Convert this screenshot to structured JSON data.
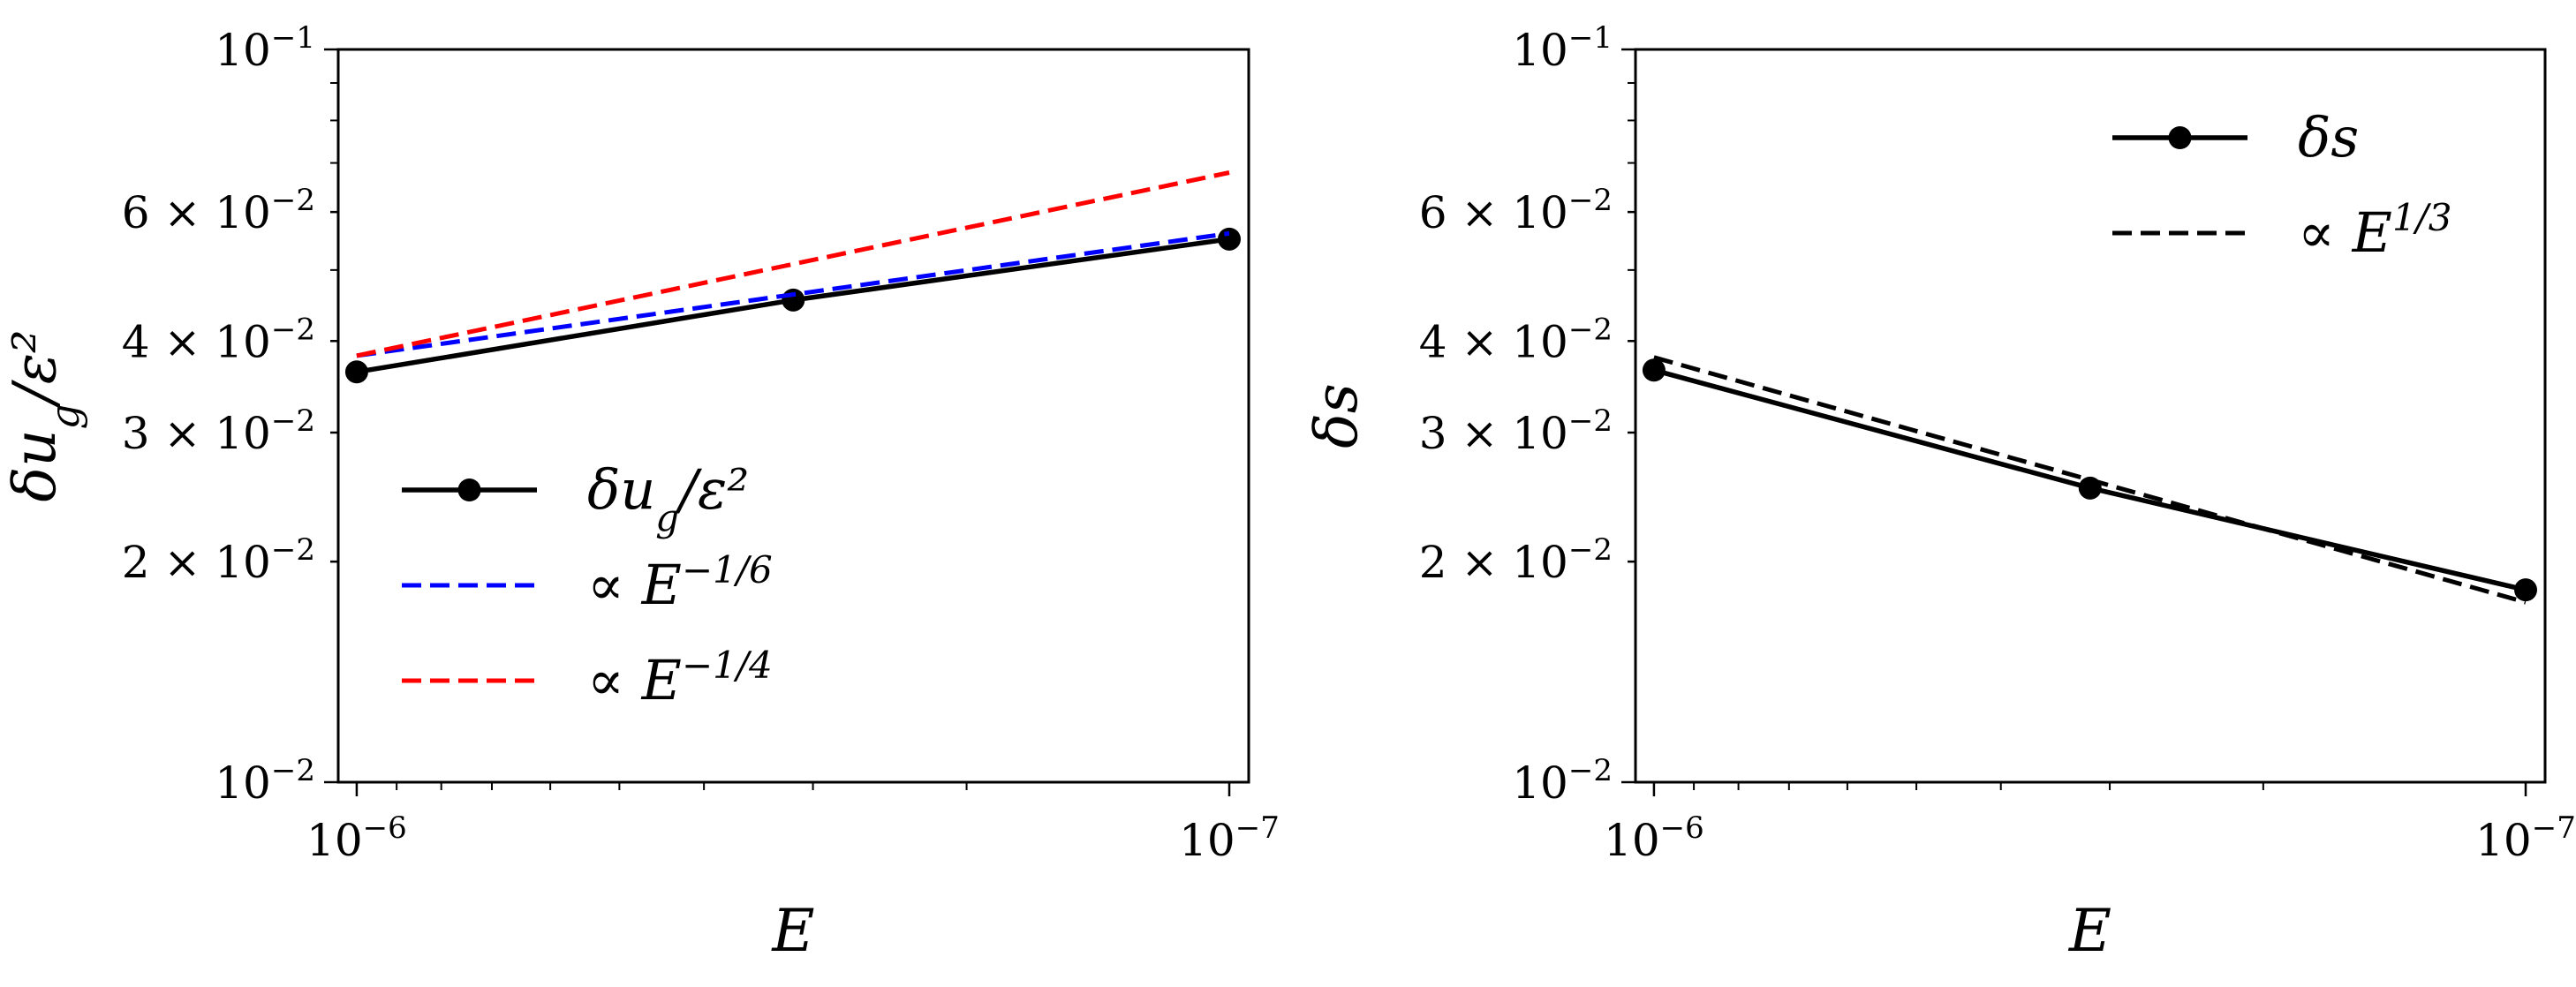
{
  "chart_data": [
    {
      "type": "line",
      "xlabel": "E",
      "ylabel": "δu_g/ε²",
      "x_scale": "log",
      "x_reversed": true,
      "xlim": [
        1.05e-06,
        9.5e-08
      ],
      "x_ticks": [
        {
          "value": 1e-06,
          "label": "10",
          "exp": "−6"
        },
        {
          "value": 1e-07,
          "label": "10",
          "exp": "−7"
        }
      ],
      "y_scale": "log",
      "ylim": [
        0.01,
        0.1
      ],
      "y_ticks": [
        {
          "value": 0.1,
          "mant": "",
          "label": "10",
          "exp": "−1"
        },
        {
          "value": 0.06,
          "mant": "6 × ",
          "label": "10",
          "exp": "−2"
        },
        {
          "value": 0.04,
          "mant": "4 × ",
          "label": "10",
          "exp": "−2"
        },
        {
          "value": 0.03,
          "mant": "3 × ",
          "label": "10",
          "exp": "−2"
        },
        {
          "value": 0.02,
          "mant": "2 × ",
          "label": "10",
          "exp": "−2"
        },
        {
          "value": 0.01,
          "mant": "",
          "label": "10",
          "exp": "−2"
        }
      ],
      "legend_position": "lower-left",
      "series": [
        {
          "name": "δu_g/ε²",
          "color": "#000000",
          "style": "solid",
          "markers": true,
          "x": [
            1e-06,
            3.16e-07,
            1e-07
          ],
          "y": [
            0.0363,
            0.0455,
            0.0551
          ]
        },
        {
          "name": "∝ E^(−1/6)",
          "color": "#0000ff",
          "style": "dashed",
          "markers": false,
          "x": [
            1e-06,
            1e-07
          ],
          "y": [
            0.0382,
            0.0561
          ]
        },
        {
          "name": "∝ E^(−1/4)",
          "color": "#ff0000",
          "style": "dashed",
          "markers": false,
          "x": [
            1e-06,
            1e-07
          ],
          "y": [
            0.0382,
            0.0679
          ]
        }
      ]
    },
    {
      "type": "line",
      "xlabel": "E",
      "ylabel": "δs",
      "x_scale": "log",
      "x_reversed": true,
      "xlim": [
        1.05e-06,
        9.5e-08
      ],
      "x_ticks": [
        {
          "value": 1e-06,
          "label": "10",
          "exp": "−6"
        },
        {
          "value": 1e-07,
          "label": "10",
          "exp": "−7"
        }
      ],
      "y_scale": "log",
      "ylim": [
        0.01,
        0.1
      ],
      "y_ticks": [
        {
          "value": 0.1,
          "mant": "",
          "label": "10",
          "exp": "−1"
        },
        {
          "value": 0.06,
          "mant": "6 × ",
          "label": "10",
          "exp": "−2"
        },
        {
          "value": 0.04,
          "mant": "4 × ",
          "label": "10",
          "exp": "−2"
        },
        {
          "value": 0.03,
          "mant": "3 × ",
          "label": "10",
          "exp": "−2"
        },
        {
          "value": 0.02,
          "mant": "2 × ",
          "label": "10",
          "exp": "−2"
        },
        {
          "value": 0.01,
          "mant": "",
          "label": "10",
          "exp": "−2"
        }
      ],
      "legend_position": "upper-right",
      "series": [
        {
          "name": "δs",
          "color": "#000000",
          "style": "solid",
          "markers": true,
          "x": [
            1e-06,
            3.16e-07,
            1e-07
          ],
          "y": [
            0.0365,
            0.0252,
            0.0183
          ]
        },
        {
          "name": "∝ E^(1/3)",
          "color": "#000000",
          "style": "dashed",
          "markers": false,
          "x": [
            1e-06,
            1e-07
          ],
          "y": [
            0.038,
            0.0176
          ]
        }
      ]
    }
  ]
}
